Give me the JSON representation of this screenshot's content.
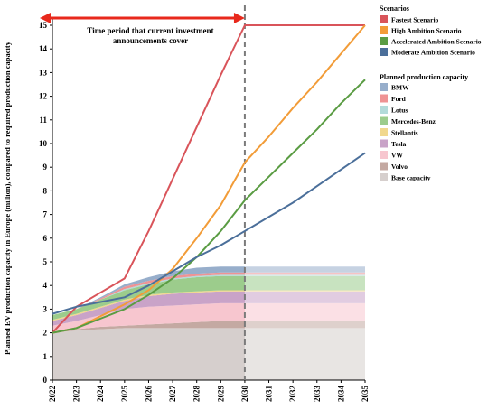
{
  "chart_data": {
    "type": "area",
    "ylabel": "Planned EV production capacity in Europe (million), compared to required production capacity",
    "xlabel": "",
    "x": [
      2022,
      2023,
      2024,
      2025,
      2026,
      2027,
      2028,
      2029,
      2030,
      2031,
      2032,
      2033,
      2034,
      2035
    ],
    "ylim": [
      0,
      15
    ],
    "yticks": [
      0,
      1,
      2,
      3,
      4,
      5,
      6,
      7,
      8,
      9,
      10,
      11,
      12,
      13,
      14,
      15
    ],
    "grid": false,
    "annotation": {
      "text_line1": "Time period that current investment",
      "text_line2": "announcements cover",
      "x_start": 2022,
      "x_end": 2030,
      "color": "#e8291c"
    },
    "divider_year": 2030,
    "capacity_legend_title": "Planned production capacity",
    "capacity_stack": [
      {
        "name": "Base capacity",
        "color": "#d6cfcd",
        "values": [
          2.0,
          2.1,
          2.15,
          2.2,
          2.2,
          2.2,
          2.2,
          2.2,
          2.2,
          2.2,
          2.2,
          2.2,
          2.2,
          2.2
        ]
      },
      {
        "name": "Volvo",
        "color": "#c4a9a2",
        "values": [
          0.0,
          0.05,
          0.1,
          0.1,
          0.15,
          0.2,
          0.25,
          0.3,
          0.3,
          0.3,
          0.3,
          0.3,
          0.3,
          0.3
        ]
      },
      {
        "name": "VW",
        "color": "#f7c6cf",
        "values": [
          0.3,
          0.35,
          0.5,
          0.7,
          0.75,
          0.75,
          0.75,
          0.75,
          0.75,
          0.75,
          0.75,
          0.75,
          0.75,
          0.75
        ]
      },
      {
        "name": "Tesla",
        "color": "#c9a3c8",
        "values": [
          0.2,
          0.25,
          0.3,
          0.35,
          0.45,
          0.5,
          0.5,
          0.5,
          0.5,
          0.5,
          0.5,
          0.5,
          0.5,
          0.5
        ]
      },
      {
        "name": "Stellantis",
        "color": "#f1d88e",
        "values": [
          0.05,
          0.05,
          0.05,
          0.05,
          0.05,
          0.05,
          0.05,
          0.05,
          0.05,
          0.05,
          0.05,
          0.05,
          0.05,
          0.05
        ]
      },
      {
        "name": "Mercedes-Benz",
        "color": "#9ccc8c",
        "values": [
          0.2,
          0.2,
          0.3,
          0.4,
          0.45,
          0.55,
          0.6,
          0.6,
          0.6,
          0.6,
          0.6,
          0.6,
          0.6,
          0.6
        ]
      },
      {
        "name": "Lotus",
        "color": "#b3dbda",
        "values": [
          0.0,
          0.0,
          0.0,
          0.05,
          0.05,
          0.05,
          0.05,
          0.05,
          0.05,
          0.05,
          0.05,
          0.05,
          0.05,
          0.05
        ]
      },
      {
        "name": "Ford",
        "color": "#ef9394",
        "values": [
          0.0,
          0.0,
          0.05,
          0.1,
          0.1,
          0.1,
          0.1,
          0.1,
          0.1,
          0.1,
          0.1,
          0.1,
          0.1,
          0.1
        ]
      },
      {
        "name": "BMW",
        "color": "#97aecb",
        "values": [
          0.0,
          0.0,
          0.05,
          0.1,
          0.15,
          0.2,
          0.25,
          0.25,
          0.25,
          0.25,
          0.25,
          0.25,
          0.25,
          0.25
        ]
      }
    ],
    "capacity_legend_order": [
      "BMW",
      "Ford",
      "Lotus",
      "Mercedes-Benz",
      "Stellantis",
      "Tesla",
      "VW",
      "Volvo",
      "Base capacity"
    ],
    "scenario_legend_title": "Scenarios",
    "scenarios": [
      {
        "name": "Fastest Scenario",
        "color": "#d9545a",
        "values": [
          2.0,
          3.1,
          3.7,
          4.3,
          6.3,
          8.5,
          10.7,
          12.9,
          15.0,
          15.0,
          15.0,
          15.0,
          15.0,
          15.0
        ]
      },
      {
        "name": "High Ambition Scenario",
        "color": "#f29c38",
        "values": [
          2.0,
          2.2,
          2.7,
          3.2,
          3.8,
          4.7,
          6.0,
          7.4,
          9.2,
          10.3,
          11.5,
          12.6,
          13.8,
          15.0
        ]
      },
      {
        "name": "Accelerated Ambition Scenario",
        "color": "#5a9c43",
        "values": [
          2.0,
          2.2,
          2.6,
          3.0,
          3.6,
          4.3,
          5.2,
          6.3,
          7.6,
          8.6,
          9.6,
          10.6,
          11.7,
          12.7
        ]
      },
      {
        "name": "Moderate Ambition Scenario",
        "color": "#4b6f9a",
        "values": [
          2.8,
          3.1,
          3.3,
          3.5,
          4.0,
          4.6,
          5.2,
          5.7,
          6.3,
          6.9,
          7.5,
          8.2,
          8.9,
          9.6
        ]
      }
    ]
  }
}
